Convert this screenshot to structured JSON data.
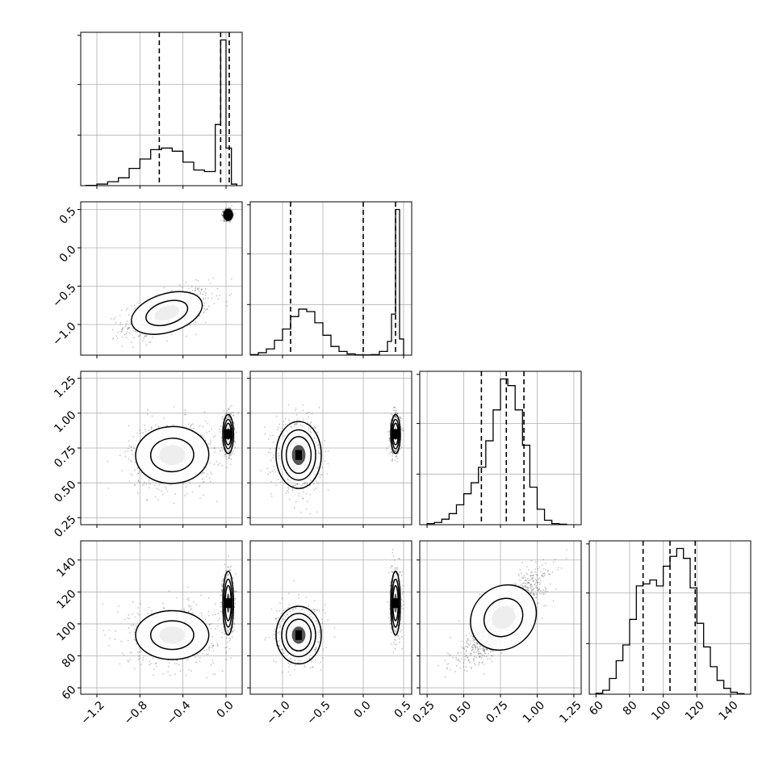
{
  "chart_data": {
    "type": "corner",
    "parameters": [
      {
        "range": [
          -1.35,
          0.15
        ],
        "ticks": [
          -1.2,
          -0.8,
          -0.4,
          0.0
        ],
        "tick_labels": [
          "−1.2",
          "−0.8",
          "−0.4",
          "0.0"
        ],
        "quantiles": [
          -0.62,
          -0.05,
          0.03
        ],
        "hist_bins": [
          -1.3,
          -1.2,
          -1.1,
          -1.0,
          -0.9,
          -0.8,
          -0.7,
          -0.6,
          -0.5,
          -0.4,
          -0.3,
          -0.2,
          -0.1,
          -0.05,
          0.0,
          0.05,
          0.1
        ],
        "hist_counts": [
          0.2,
          1,
          2.5,
          5,
          11,
          17,
          23,
          24,
          22,
          15,
          10,
          9,
          39,
          93,
          24,
          1
        ]
      },
      {
        "range": [
          -1.4,
          0.6
        ],
        "ticks": [
          -1.0,
          -0.5,
          0.0,
          0.5
        ],
        "tick_labels": [
          "−1.0",
          "−0.5",
          "0.0",
          "0.5"
        ],
        "quantiles": [
          -0.9,
          0.0,
          0.4
        ],
        "hist_bins": [
          -1.4,
          -1.3,
          -1.2,
          -1.1,
          -1.0,
          -0.9,
          -0.8,
          -0.7,
          -0.6,
          -0.5,
          -0.4,
          -0.3,
          -0.2,
          -0.1,
          0.0,
          0.1,
          0.2,
          0.3,
          0.35,
          0.4,
          0.45,
          0.5
        ],
        "hist_counts": [
          0.5,
          2,
          5,
          12,
          21,
          31,
          37,
          35,
          26,
          16,
          7,
          3,
          1,
          0.3,
          0.2,
          0.5,
          3,
          11,
          33,
          117,
          13
        ]
      },
      {
        "range": [
          0.2,
          1.3
        ],
        "ticks": [
          0.25,
          0.5,
          0.75,
          1.0,
          1.25
        ],
        "tick_labels": [
          "0.25",
          "0.50",
          "0.75",
          "1.00",
          "1.25"
        ],
        "y_ticks": [
          0.25,
          0.5,
          0.75,
          1.0,
          1.25
        ],
        "y_tick_labels": [
          "0.25",
          "0.50",
          "0.75",
          "1.00",
          "1.25"
        ],
        "quantiles": [
          0.62,
          0.79,
          0.91
        ],
        "hist_bins": [
          0.25,
          0.3,
          0.35,
          0.4,
          0.45,
          0.5,
          0.55,
          0.6,
          0.65,
          0.7,
          0.75,
          0.8,
          0.85,
          0.9,
          0.95,
          1.0,
          1.05,
          1.1,
          1.15,
          1.2
        ],
        "hist_counts": [
          0.5,
          1,
          2.5,
          5,
          9,
          14,
          19,
          26,
          38,
          52,
          66,
          63,
          52,
          36,
          17,
          7,
          2,
          0.5,
          0.2
        ]
      },
      {
        "range": [
          56,
          152
        ],
        "ticks": [
          60,
          80,
          100,
          120,
          140
        ],
        "tick_labels": [
          "60",
          "80",
          "100",
          "120",
          "140"
        ],
        "quantiles": [
          88,
          104,
          119
        ],
        "hist_bins": [
          60,
          64,
          68,
          72,
          76,
          80,
          84,
          88,
          92,
          96,
          100,
          104,
          108,
          112,
          116,
          120,
          124,
          128,
          132,
          136,
          140,
          144,
          148
        ],
        "hist_counts": [
          0.5,
          2,
          8,
          17,
          25,
          38,
          55,
          56,
          58,
          55,
          65,
          70,
          74,
          69,
          54,
          36,
          24,
          14,
          7,
          3,
          1,
          0.3
        ]
      }
    ],
    "pairs": [
      {
        "row": 1,
        "col": 0,
        "modes": [
          {
            "cx": -0.55,
            "cy": -0.85,
            "sx": 0.2,
            "sy": 0.16,
            "rho": 0.55,
            "w": 0.5
          },
          {
            "cx": 0.02,
            "cy": 0.43,
            "sx": 0.02,
            "sy": 0.035,
            "rho": 0.0,
            "w": 0.5
          }
        ]
      },
      {
        "row": 2,
        "col": 0,
        "modes": [
          {
            "cx": -0.5,
            "cy": 0.7,
            "sx": 0.2,
            "sy": 0.12,
            "rho": 0.05,
            "w": 0.5
          },
          {
            "cx": 0.02,
            "cy": 0.85,
            "sx": 0.025,
            "sy": 0.07,
            "rho": 0.0,
            "w": 0.5
          }
        ]
      },
      {
        "row": 2,
        "col": 1,
        "modes": [
          {
            "cx": -0.8,
            "cy": 0.7,
            "sx": 0.14,
            "sy": 0.12,
            "rho": 0.0,
            "w": 0.5
          },
          {
            "cx": 0.4,
            "cy": 0.85,
            "sx": 0.03,
            "sy": 0.07,
            "rho": 0.0,
            "w": 0.5
          }
        ]
      },
      {
        "row": 3,
        "col": 0,
        "modes": [
          {
            "cx": -0.5,
            "cy": 93,
            "sx": 0.2,
            "sy": 9,
            "rho": 0.0,
            "w": 0.5
          },
          {
            "cx": 0.02,
            "cy": 113,
            "sx": 0.025,
            "sy": 10,
            "rho": 0.0,
            "w": 0.5
          }
        ]
      },
      {
        "row": 3,
        "col": 1,
        "modes": [
          {
            "cx": -0.8,
            "cy": 93,
            "sx": 0.14,
            "sy": 9,
            "rho": 0.0,
            "w": 0.5
          },
          {
            "cx": 0.4,
            "cy": 113,
            "sx": 0.03,
            "sy": 10,
            "rho": 0.0,
            "w": 0.5
          }
        ]
      },
      {
        "row": 3,
        "col": 2,
        "modes": [
          {
            "cx": 0.77,
            "cy": 104,
            "sx": 0.14,
            "sy": 14,
            "rho": 0.85,
            "w": 1.0
          }
        ]
      }
    ],
    "hist_style": "step",
    "quantile_line_style": "dashed",
    "grid": true,
    "title": "",
    "xlabel": "",
    "ylabel": "",
    "colors": {
      "line": "#000000",
      "grid": "#b0b0b0",
      "points": "#000000",
      "background": "#ffffff"
    }
  }
}
